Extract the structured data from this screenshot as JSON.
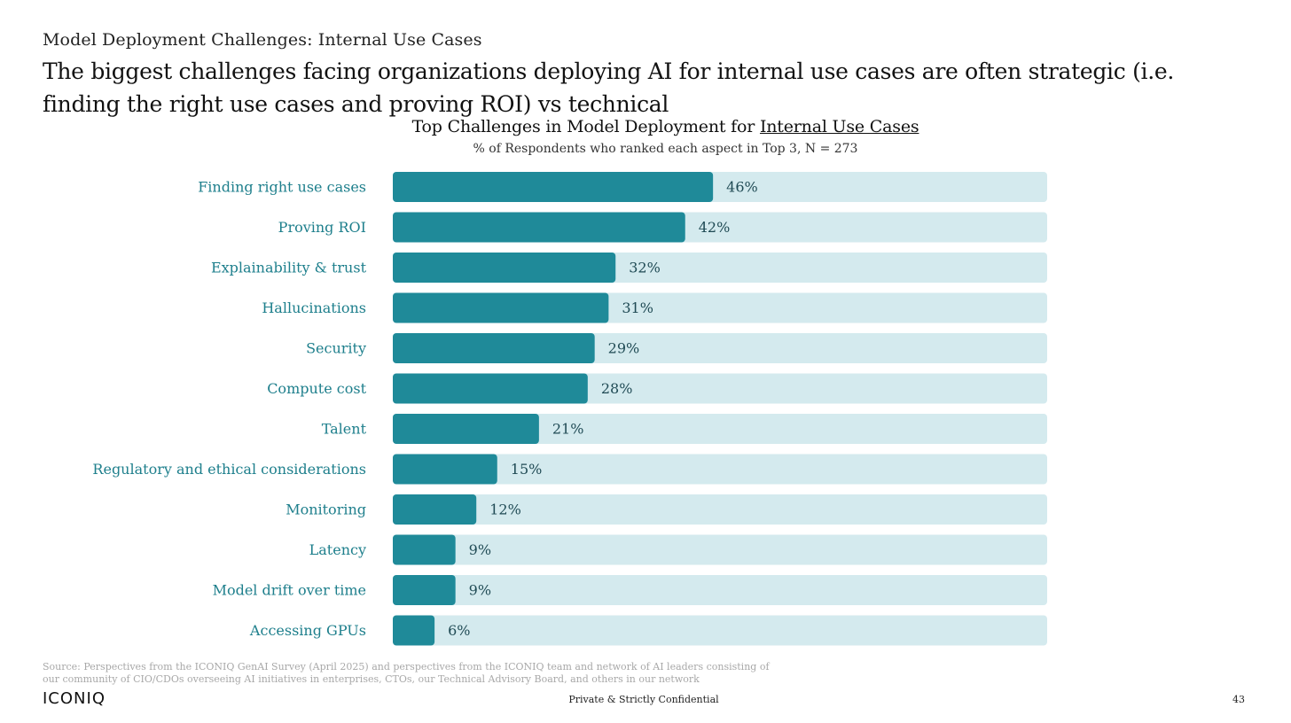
{
  "section_label": "Model Deployment Challenges: Internal Use Cases",
  "headline": "The biggest challenges facing organizations deploying AI for internal use cases are often strategic (i.e. finding the right use cases and proving ROI) vs technical",
  "chart_data": {
    "type": "bar",
    "orientation": "horizontal",
    "title_prefix": "Top Challenges in Model Deployment for",
    "title_emphasis": "Internal Use Cases",
    "subtitle": "% of Respondents who ranked each aspect in Top 3, N = 273",
    "categories": [
      "Finding right use cases",
      "Proving ROI",
      "Explainability & trust",
      "Hallucinations",
      "Security",
      "Compute cost",
      "Talent",
      "Regulatory and ethical considerations",
      "Monitoring",
      "Latency",
      "Model drift over time",
      "Accessing GPUs"
    ],
    "values": [
      46,
      42,
      32,
      31,
      29,
      28,
      21,
      15,
      12,
      9,
      9,
      6
    ],
    "value_labels": [
      "46%",
      "42%",
      "32%",
      "31%",
      "29%",
      "28%",
      "21%",
      "15%",
      "12%",
      "9%",
      "9%",
      "6%"
    ],
    "xlim": [
      0,
      94
    ],
    "grid": false,
    "legend": "none",
    "colors": {
      "bar": "#1f8a99",
      "track": "#d4eaee",
      "category_label": "#1e7f8c",
      "value_label": "#1f4a54"
    }
  },
  "footer": {
    "source": "Source: Perspectives from the ICONIQ GenAI Survey (April 2025) and perspectives from the ICONIQ team and network of AI leaders consisting of our community of CIO/CDOs overseeing AI initiatives in enterprises, CTOs, our Technical Advisory Board, and others in our network",
    "logo": "ICONIQ",
    "confidential": "Private & Strictly Confidential",
    "page_number": "43"
  }
}
